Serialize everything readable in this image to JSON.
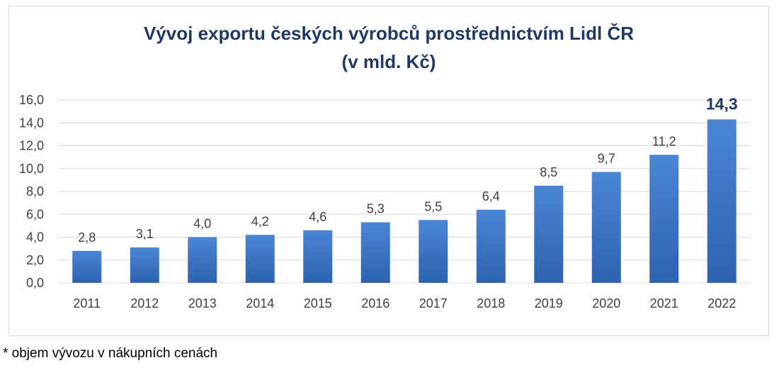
{
  "chart_data": {
    "type": "bar",
    "title_line1": "Vývoj exportu českých výrobců prostřednictvím Lidl ČR",
    "title_line2": "(v mld. Kč)",
    "categories": [
      "2011",
      "2012",
      "2013",
      "2014",
      "2015",
      "2016",
      "2017",
      "2018",
      "2019",
      "2020",
      "2021",
      "2022"
    ],
    "values": [
      2.8,
      3.1,
      4.0,
      4.2,
      4.6,
      5.3,
      5.5,
      6.4,
      8.5,
      9.7,
      11.2,
      14.3
    ],
    "value_labels": [
      "2,8",
      "3,1",
      "4,0",
      "4,2",
      "4,6",
      "5,3",
      "5,5",
      "6,4",
      "8,5",
      "9,7",
      "11,2",
      "14,3"
    ],
    "ylim": [
      0,
      16
    ],
    "y_ticks": [
      0,
      2,
      4,
      6,
      8,
      10,
      12,
      14,
      16
    ],
    "y_tick_labels": [
      "0,0",
      "2,0",
      "4,0",
      "6,0",
      "8,0",
      "10,0",
      "12,0",
      "14,0",
      "16,0"
    ],
    "xlabel": "",
    "ylabel": "",
    "grid": true,
    "legend": "none",
    "highlight_last_label": true,
    "colors": {
      "bar_top": "#4a86d4",
      "bar_bottom": "#2e62b0",
      "grid": "#d9d9d9",
      "title": "#1f3864",
      "labels": "#404040"
    }
  },
  "footnote": "* objem vývozu v nákupních cenách"
}
